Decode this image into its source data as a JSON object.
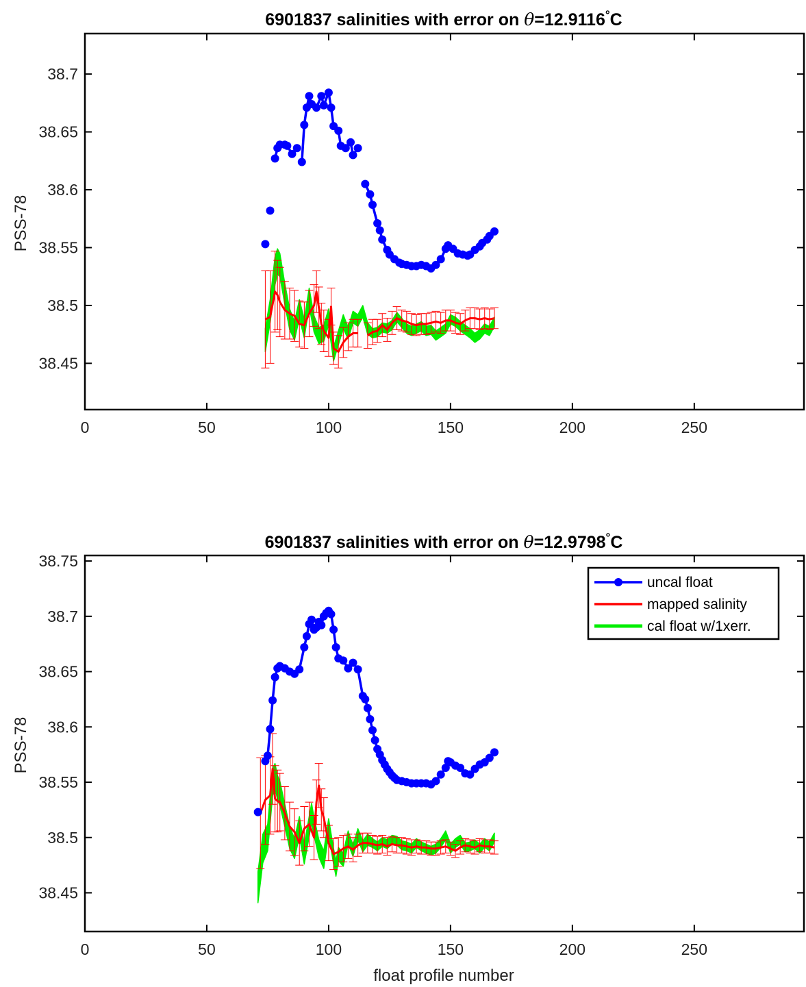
{
  "chart_data": [
    {
      "type": "line",
      "title": "6901837 salinities with error on θ=12.9116°C",
      "title_parts": {
        "prefix": "6901837 salinities with error on ",
        "theta": "θ",
        "value": "=12.9116",
        "degree": "°",
        "unit": "C"
      },
      "xlabel": "",
      "ylabel": "PSS-78",
      "xlim": [
        0,
        295
      ],
      "ylim": [
        38.41,
        38.735
      ],
      "xticks": [
        0,
        50,
        100,
        150,
        200,
        250
      ],
      "xtick_labels": [
        "0",
        "50",
        "100",
        "150",
        "200",
        "250"
      ],
      "yticks": [
        38.45,
        38.5,
        38.55,
        38.6,
        38.65,
        38.7
      ],
      "ytick_labels": [
        "38.45",
        "38.5",
        "38.55",
        "38.6",
        "38.65",
        "38.7"
      ],
      "grid": false,
      "legend": null,
      "series": [
        {
          "name": "uncal float",
          "color": "#0000ff",
          "marker": "circle",
          "x": [
            74,
            76,
            78,
            79,
            80,
            82,
            83,
            85,
            87,
            89,
            90,
            91,
            92,
            93,
            95,
            97,
            98,
            100,
            101,
            102,
            104,
            105,
            107,
            109,
            110,
            112,
            115,
            117,
            118,
            120,
            121,
            122,
            124,
            125,
            127,
            129,
            130,
            132,
            134,
            136,
            138,
            140,
            142,
            144,
            146,
            148,
            149,
            151,
            153,
            155,
            157,
            158,
            160,
            162,
            163,
            165,
            166,
            168
          ],
          "y": [
            38.553,
            38.582,
            38.627,
            38.636,
            38.639,
            38.639,
            38.638,
            38.631,
            38.636,
            38.624,
            38.656,
            38.671,
            38.681,
            38.674,
            38.671,
            38.681,
            38.673,
            38.684,
            38.671,
            38.655,
            38.651,
            38.638,
            38.636,
            38.641,
            38.63,
            38.636,
            38.605,
            38.596,
            38.587,
            38.571,
            38.565,
            38.557,
            38.548,
            38.544,
            38.54,
            38.537,
            38.536,
            38.535,
            38.534,
            38.534,
            38.535,
            38.534,
            38.532,
            38.535,
            38.54,
            38.549,
            38.552,
            38.549,
            38.545,
            38.544,
            38.543,
            38.544,
            38.548,
            38.551,
            38.554,
            38.557,
            38.56,
            38.564
          ],
          "gaps_after_x": [
            74,
            76,
            87,
            105,
            112
          ]
        },
        {
          "name": "mapped salinity",
          "color": "#ff0000",
          "x": [
            74,
            76,
            78,
            79,
            80,
            82,
            84,
            86,
            88,
            90,
            92,
            94,
            95,
            96,
            97,
            98,
            100,
            101,
            102,
            104,
            106,
            108,
            110,
            112,
            116,
            118,
            120,
            122,
            124,
            126,
            128,
            130,
            132,
            134,
            136,
            138,
            140,
            142,
            144,
            146,
            148,
            150,
            152,
            154,
            156,
            158,
            160,
            162,
            164,
            166,
            168
          ],
          "y": [
            38.488,
            38.49,
            38.512,
            38.509,
            38.503,
            38.496,
            38.493,
            38.491,
            38.484,
            38.483,
            38.493,
            38.5,
            38.512,
            38.498,
            38.484,
            38.478,
            38.472,
            38.499,
            38.463,
            38.46,
            38.468,
            38.473,
            38.476,
            38.476,
            38.474,
            38.477,
            38.478,
            38.483,
            38.479,
            38.485,
            38.489,
            38.487,
            38.486,
            38.484,
            38.483,
            38.484,
            38.484,
            38.485,
            38.486,
            38.485,
            38.487,
            38.487,
            38.485,
            38.484,
            38.487,
            38.489,
            38.489,
            38.488,
            38.489,
            38.488,
            38.489
          ],
          "error": [
            0.042,
            0.04,
            0.035,
            0.03,
            0.03,
            0.025,
            0.022,
            0.022,
            0.02,
            0.02,
            0.02,
            0.018,
            0.018,
            0.018,
            0.018,
            0.018,
            0.016,
            0.016,
            0.014,
            0.014,
            0.013,
            0.012,
            0.012,
            0.012,
            0.011,
            0.011,
            0.01,
            0.01,
            0.01,
            0.01,
            0.01,
            0.009,
            0.009,
            0.009,
            0.009,
            0.009,
            0.009,
            0.009,
            0.009,
            0.009,
            0.009,
            0.009,
            0.009,
            0.009,
            0.009,
            0.009,
            0.009,
            0.009,
            0.009,
            0.009,
            0.009
          ],
          "gaps_after_x": [
            112
          ]
        },
        {
          "name": "cal float w/1xerr.",
          "color": "#00ee00",
          "x": [
            74,
            76,
            78,
            79,
            80,
            82,
            84,
            86,
            88,
            90,
            92,
            94,
            96,
            98,
            100,
            102,
            104,
            106,
            108,
            110,
            112,
            114,
            116,
            118,
            120,
            122,
            124,
            126,
            128,
            130,
            132,
            134,
            136,
            138,
            140,
            142,
            144,
            146,
            148,
            150,
            152,
            154,
            156,
            158,
            160,
            162,
            164,
            166,
            168
          ],
          "y": [
            38.47,
            38.495,
            38.53,
            38.538,
            38.535,
            38.51,
            38.488,
            38.478,
            38.497,
            38.48,
            38.507,
            38.484,
            38.474,
            38.476,
            38.49,
            38.458,
            38.472,
            38.486,
            38.476,
            38.49,
            38.487,
            38.495,
            38.48,
            38.476,
            38.477,
            38.481,
            38.48,
            38.483,
            38.49,
            38.485,
            38.48,
            38.478,
            38.48,
            38.482,
            38.478,
            38.479,
            38.474,
            38.477,
            38.48,
            38.488,
            38.486,
            38.482,
            38.479,
            38.476,
            38.472,
            38.475,
            38.48,
            38.478,
            38.486
          ],
          "error": [
            0.01,
            0.01,
            0.012,
            0.011,
            0.01,
            0.009,
            0.009,
            0.008,
            0.008,
            0.008,
            0.008,
            0.007,
            0.007,
            0.007,
            0.007,
            0.006,
            0.006,
            0.006,
            0.005,
            0.005,
            0.005,
            0.005,
            0.005,
            0.004,
            0.004,
            0.004,
            0.004,
            0.004,
            0.004,
            0.004,
            0.004,
            0.004,
            0.004,
            0.004,
            0.004,
            0.004,
            0.004,
            0.004,
            0.004,
            0.004,
            0.004,
            0.004,
            0.004,
            0.004,
            0.004,
            0.004,
            0.004,
            0.004,
            0.004
          ]
        }
      ]
    },
    {
      "type": "line",
      "title": "6901837 salinities with error on θ=12.9798°C",
      "title_parts": {
        "prefix": "6901837 salinities with error on ",
        "theta": "θ",
        "value": "=12.9798",
        "degree": "°",
        "unit": "C"
      },
      "xlabel": "float profile number",
      "ylabel": "PSS-78",
      "xlim": [
        0,
        295
      ],
      "ylim": [
        38.415,
        38.755
      ],
      "xticks": [
        0,
        50,
        100,
        150,
        200,
        250
      ],
      "xtick_labels": [
        "0",
        "50",
        "100",
        "150",
        "200",
        "250"
      ],
      "yticks": [
        38.45,
        38.5,
        38.55,
        38.6,
        38.65,
        38.7,
        38.75
      ],
      "ytick_labels": [
        "38.45",
        "38.5",
        "38.55",
        "38.6",
        "38.65",
        "38.7",
        "38.75"
      ],
      "grid": false,
      "legend": {
        "position": "top-right",
        "entries": [
          "uncal float",
          "mapped salinity",
          "cal float w/1xerr."
        ]
      },
      "series": [
        {
          "name": "uncal float",
          "color": "#0000ff",
          "marker": "circle",
          "x": [
            71,
            74,
            75,
            76,
            77,
            78,
            79,
            80,
            82,
            84,
            86,
            88,
            90,
            91,
            92,
            93,
            94,
            95,
            96,
            97,
            98,
            99,
            100,
            101,
            102,
            103,
            104,
            106,
            108,
            110,
            112,
            114,
            115,
            116,
            117,
            118,
            119,
            120,
            121,
            122,
            123,
            124,
            125,
            126,
            127,
            128,
            130,
            132,
            134,
            136,
            138,
            140,
            142,
            144,
            146,
            148,
            149,
            150,
            152,
            154,
            156,
            158,
            160,
            162,
            164,
            166,
            168
          ],
          "y": [
            38.523,
            38.569,
            38.574,
            38.598,
            38.624,
            38.645,
            38.653,
            38.655,
            38.653,
            38.65,
            38.648,
            38.652,
            38.672,
            38.682,
            38.693,
            38.697,
            38.688,
            38.69,
            38.695,
            38.692,
            38.7,
            38.703,
            38.705,
            38.702,
            38.688,
            38.672,
            38.662,
            38.66,
            38.653,
            38.658,
            38.652,
            38.628,
            38.625,
            38.617,
            38.607,
            38.597,
            38.588,
            38.58,
            38.575,
            38.57,
            38.566,
            38.562,
            38.559,
            38.556,
            38.554,
            38.552,
            38.551,
            38.55,
            38.549,
            38.549,
            38.549,
            38.549,
            38.548,
            38.551,
            38.557,
            38.563,
            38.569,
            38.568,
            38.565,
            38.563,
            38.558,
            38.557,
            38.562,
            38.566,
            38.568,
            38.572,
            38.577
          ],
          "gaps_after_x": [
            71
          ]
        },
        {
          "name": "mapped salinity",
          "color": "#ff0000",
          "x": [
            72,
            74,
            76,
            77,
            78,
            79,
            80,
            82,
            84,
            86,
            88,
            90,
            92,
            94,
            95,
            96,
            97,
            98,
            100,
            102,
            104,
            106,
            108,
            110,
            112,
            114,
            116,
            118,
            120,
            122,
            124,
            126,
            128,
            130,
            132,
            134,
            136,
            138,
            140,
            142,
            144,
            146,
            148,
            150,
            152,
            154,
            156,
            158,
            160,
            162,
            164,
            166,
            168
          ],
          "y": [
            38.522,
            38.534,
            38.538,
            38.562,
            38.535,
            38.533,
            38.532,
            38.522,
            38.51,
            38.505,
            38.495,
            38.508,
            38.512,
            38.5,
            38.532,
            38.547,
            38.525,
            38.518,
            38.495,
            38.485,
            38.487,
            38.49,
            38.492,
            38.489,
            38.493,
            38.495,
            38.495,
            38.494,
            38.493,
            38.494,
            38.492,
            38.494,
            38.493,
            38.493,
            38.492,
            38.491,
            38.492,
            38.491,
            38.491,
            38.49,
            38.49,
            38.491,
            38.492,
            38.49,
            38.488,
            38.491,
            38.493,
            38.492,
            38.491,
            38.493,
            38.492,
            38.492,
            38.491
          ],
          "error": [
            0.05,
            0.04,
            0.035,
            0.032,
            0.03,
            0.028,
            0.026,
            0.024,
            0.022,
            0.021,
            0.02,
            0.02,
            0.02,
            0.02,
            0.02,
            0.02,
            0.019,
            0.018,
            0.016,
            0.014,
            0.013,
            0.012,
            0.011,
            0.011,
            0.01,
            0.009,
            0.009,
            0.008,
            0.008,
            0.008,
            0.008,
            0.007,
            0.007,
            0.007,
            0.007,
            0.007,
            0.006,
            0.006,
            0.006,
            0.006,
            0.006,
            0.006,
            0.006,
            0.006,
            0.006,
            0.006,
            0.006,
            0.006,
            0.006,
            0.006,
            0.006,
            0.006,
            0.006
          ]
        },
        {
          "name": "cal float w/1xerr.",
          "color": "#00ee00",
          "x": [
            71,
            73,
            75,
            76,
            77,
            78,
            79,
            80,
            82,
            84,
            86,
            88,
            90,
            92,
            93,
            94,
            96,
            98,
            100,
            102,
            103,
            104,
            106,
            108,
            110,
            112,
            114,
            116,
            118,
            120,
            122,
            124,
            126,
            128,
            130,
            132,
            134,
            136,
            138,
            140,
            142,
            144,
            146,
            148,
            150,
            152,
            154,
            156,
            158,
            160,
            162,
            164,
            166,
            168
          ],
          "y": [
            38.455,
            38.49,
            38.5,
            38.525,
            38.55,
            38.556,
            38.545,
            38.54,
            38.52,
            38.5,
            38.49,
            38.51,
            38.485,
            38.51,
            38.522,
            38.51,
            38.49,
            38.48,
            38.51,
            38.483,
            38.472,
            38.485,
            38.48,
            38.5,
            38.488,
            38.503,
            38.492,
            38.498,
            38.495,
            38.492,
            38.496,
            38.494,
            38.498,
            38.497,
            38.493,
            38.492,
            38.49,
            38.495,
            38.492,
            38.49,
            38.488,
            38.49,
            38.495,
            38.502,
            38.49,
            38.495,
            38.498,
            38.491,
            38.492,
            38.494,
            38.49,
            38.495,
            38.492,
            38.5
          ],
          "error": [
            0.014,
            0.013,
            0.012,
            0.012,
            0.012,
            0.011,
            0.011,
            0.011,
            0.01,
            0.01,
            0.009,
            0.009,
            0.009,
            0.009,
            0.009,
            0.008,
            0.008,
            0.008,
            0.007,
            0.007,
            0.007,
            0.006,
            0.006,
            0.006,
            0.005,
            0.005,
            0.005,
            0.005,
            0.004,
            0.004,
            0.004,
            0.004,
            0.004,
            0.004,
            0.004,
            0.004,
            0.004,
            0.004,
            0.004,
            0.004,
            0.004,
            0.004,
            0.004,
            0.004,
            0.004,
            0.004,
            0.004,
            0.004,
            0.004,
            0.004,
            0.004,
            0.004,
            0.004,
            0.004
          ]
        }
      ]
    }
  ]
}
